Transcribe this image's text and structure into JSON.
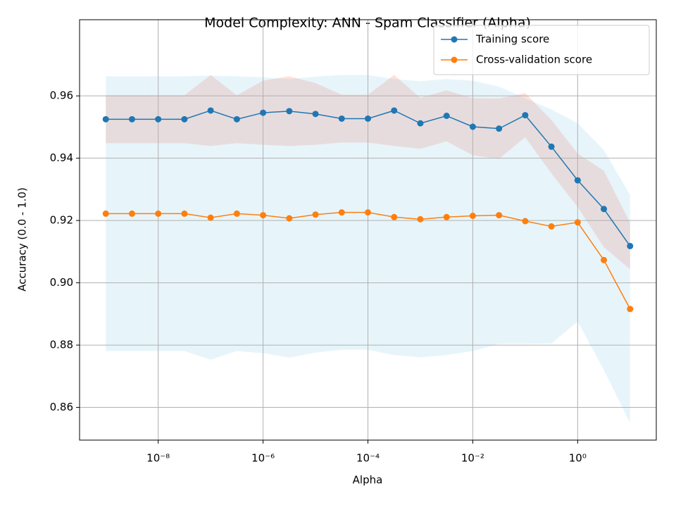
{
  "chart_data": {
    "type": "line",
    "title": "Model Complexity: ANN - Spam Classifier (Alpha)",
    "xlabel": "Alpha",
    "ylabel": "Accuracy (0.0 - 1.0)",
    "xscale": "log",
    "x": [
      1e-09,
      3.162e-09,
      1e-08,
      3.162e-08,
      1e-07,
      3.162e-07,
      1e-06,
      3.162e-06,
      1e-05,
      3.162e-05,
      0.0001,
      0.0003162,
      0.001,
      0.003162,
      0.01,
      0.03162,
      0.1,
      0.3162,
      1,
      3.162,
      10
    ],
    "xlim": [
      3.162e-10,
      31.62
    ],
    "xticks": [
      {
        "value": 1e-08,
        "label": "10⁻⁸"
      },
      {
        "value": 1e-06,
        "label": "10⁻⁶"
      },
      {
        "value": 0.0001,
        "label": "10⁻⁴"
      },
      {
        "value": 0.01,
        "label": "10⁻²"
      },
      {
        "value": 1,
        "label": "10⁰"
      }
    ],
    "ylim": [
      0.8495,
      0.9779
    ],
    "yticks": [
      {
        "value": 0.86,
        "label": "0.86"
      },
      {
        "value": 0.88,
        "label": "0.88"
      },
      {
        "value": 0.9,
        "label": "0.90"
      },
      {
        "value": 0.92,
        "label": "0.92"
      },
      {
        "value": 0.94,
        "label": "0.94"
      },
      {
        "value": 0.96,
        "label": "0.96"
      }
    ],
    "grid": true,
    "legend": "upper right",
    "series": [
      {
        "name": "Training score",
        "color": "#1f77b4",
        "band_color": "#ff6347",
        "values": [
          0.9525,
          0.9525,
          0.9525,
          0.9525,
          0.9553,
          0.9525,
          0.9546,
          0.9551,
          0.9542,
          0.9527,
          0.9527,
          0.9553,
          0.9512,
          0.9536,
          0.9501,
          0.9495,
          0.9538,
          0.9437,
          0.9329,
          0.9237,
          0.9118
        ],
        "std": [
          0.0077,
          0.0077,
          0.0077,
          0.0077,
          0.0114,
          0.0077,
          0.0103,
          0.0112,
          0.0099,
          0.0077,
          0.0077,
          0.0114,
          0.0082,
          0.0082,
          0.0092,
          0.0097,
          0.0071,
          0.0086,
          0.0086,
          0.0123,
          0.0075
        ]
      },
      {
        "name": "Cross-validation score",
        "color": "#ff7f0e",
        "band_color": "#87ceeb",
        "values": [
          0.9222,
          0.9222,
          0.9222,
          0.9222,
          0.9209,
          0.9222,
          0.9217,
          0.9207,
          0.9219,
          0.9226,
          0.9226,
          0.9211,
          0.9204,
          0.9211,
          0.9215,
          0.9217,
          0.9198,
          0.9181,
          0.9194,
          0.9073,
          0.8916
        ],
        "std": [
          0.0441,
          0.0441,
          0.0441,
          0.0441,
          0.0456,
          0.0441,
          0.0443,
          0.0447,
          0.0443,
          0.0441,
          0.0441,
          0.0443,
          0.0443,
          0.0443,
          0.0434,
          0.0413,
          0.0394,
          0.0376,
          0.0318,
          0.0353,
          0.0366
        ]
      }
    ]
  }
}
